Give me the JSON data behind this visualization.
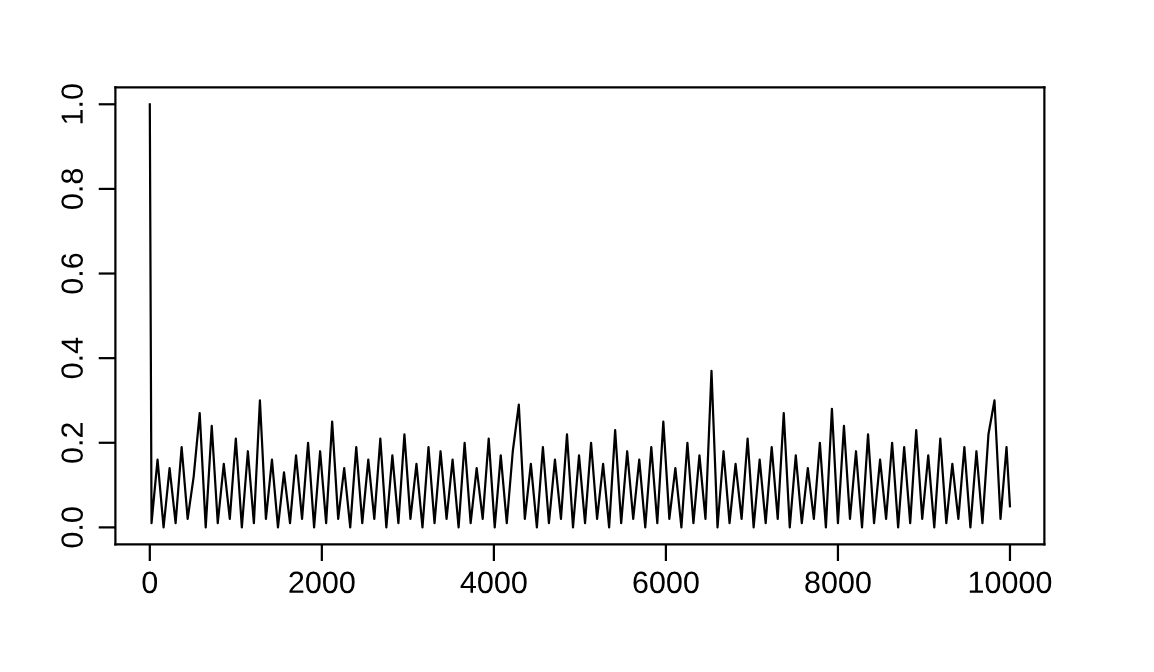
{
  "chart_data": {
    "type": "line",
    "line_style": "solid",
    "marker": "none",
    "grid": false,
    "legend": false,
    "xlim": [
      -400,
      10400
    ],
    "ylim": [
      -0.04,
      1.04
    ],
    "xticks": [
      0,
      2000,
      4000,
      6000,
      8000,
      10000
    ],
    "yticks": [
      {
        "value": 0,
        "label": "0.0"
      },
      {
        "value": 0.2,
        "label": "0.2"
      },
      {
        "value": 0.4,
        "label": "0.4"
      },
      {
        "value": 0.6,
        "label": "0.6"
      },
      {
        "value": 0.8,
        "label": "0.8"
      },
      {
        "value": 1.0,
        "label": "1.0"
      }
    ],
    "x": [
      0,
      20,
      90,
      160,
      230,
      300,
      370,
      440,
      510,
      580,
      650,
      720,
      790,
      860,
      930,
      1000,
      1070,
      1140,
      1210,
      1280,
      1350,
      1420,
      1490,
      1560,
      1630,
      1700,
      1770,
      1840,
      1910,
      1980,
      2050,
      2120,
      2190,
      2260,
      2330,
      2400,
      2470,
      2540,
      2610,
      2680,
      2750,
      2820,
      2890,
      2960,
      3030,
      3100,
      3170,
      3240,
      3310,
      3380,
      3450,
      3520,
      3590,
      3660,
      3730,
      3800,
      3870,
      3940,
      4010,
      4080,
      4150,
      4220,
      4290,
      4360,
      4430,
      4500,
      4570,
      4640,
      4710,
      4780,
      4850,
      4920,
      4990,
      5060,
      5130,
      5200,
      5270,
      5340,
      5410,
      5480,
      5550,
      5620,
      5690,
      5760,
      5830,
      5900,
      5970,
      6040,
      6110,
      6180,
      6250,
      6320,
      6390,
      6460,
      6530,
      6600,
      6670,
      6740,
      6810,
      6880,
      6950,
      7020,
      7090,
      7160,
      7230,
      7300,
      7370,
      7440,
      7510,
      7580,
      7650,
      7720,
      7790,
      7860,
      7930,
      8000,
      8070,
      8140,
      8210,
      8280,
      8350,
      8420,
      8490,
      8560,
      8630,
      8700,
      8770,
      8840,
      8910,
      8980,
      9050,
      9120,
      9190,
      9260,
      9330,
      9400,
      9470,
      9540,
      9610,
      9680,
      9750,
      9820,
      9890,
      9960,
      10000
    ],
    "series": [
      {
        "color": "#000000",
        "values": [
          1.0,
          0.01,
          0.16,
          0.0,
          0.14,
          0.01,
          0.19,
          0.02,
          0.12,
          0.27,
          0.0,
          0.24,
          0.01,
          0.15,
          0.02,
          0.21,
          0.0,
          0.18,
          0.01,
          0.3,
          0.02,
          0.16,
          0.0,
          0.13,
          0.01,
          0.17,
          0.02,
          0.2,
          0.0,
          0.18,
          0.01,
          0.25,
          0.02,
          0.14,
          0.0,
          0.19,
          0.01,
          0.16,
          0.02,
          0.21,
          0.0,
          0.17,
          0.01,
          0.22,
          0.02,
          0.15,
          0.0,
          0.19,
          0.01,
          0.18,
          0.02,
          0.16,
          0.0,
          0.2,
          0.01,
          0.14,
          0.02,
          0.21,
          0.0,
          0.17,
          0.01,
          0.18,
          0.29,
          0.02,
          0.15,
          0.0,
          0.19,
          0.01,
          0.16,
          0.02,
          0.22,
          0.0,
          0.17,
          0.01,
          0.2,
          0.02,
          0.15,
          0.0,
          0.23,
          0.01,
          0.18,
          0.02,
          0.16,
          0.0,
          0.19,
          0.01,
          0.25,
          0.02,
          0.14,
          0.0,
          0.2,
          0.01,
          0.17,
          0.02,
          0.37,
          0.0,
          0.18,
          0.01,
          0.15,
          0.02,
          0.21,
          0.0,
          0.16,
          0.01,
          0.19,
          0.02,
          0.27,
          0.0,
          0.17,
          0.01,
          0.14,
          0.02,
          0.2,
          0.0,
          0.28,
          0.01,
          0.24,
          0.02,
          0.18,
          0.0,
          0.22,
          0.01,
          0.16,
          0.02,
          0.2,
          0.0,
          0.19,
          0.01,
          0.23,
          0.02,
          0.17,
          0.0,
          0.21,
          0.01,
          0.15,
          0.02,
          0.19,
          0.0,
          0.18,
          0.01,
          0.22,
          0.3,
          0.02,
          0.19,
          0.05
        ]
      }
    ]
  }
}
